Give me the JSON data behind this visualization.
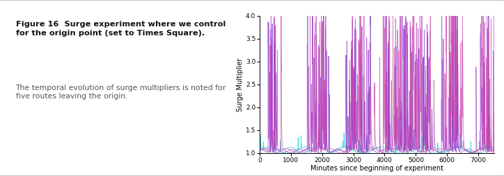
{
  "title_bold": "Figure 16  Surge experiment where we control\nfor the origin point (set to Times Square).",
  "title_normal": " The\ntemporal evolution of surge multipliers is noted for\nfive routes leaving the origin.",
  "xlabel": "Minutes since beginning of experiment",
  "ylabel": "Surge Multiplier",
  "ylim": [
    1.0,
    4.0
  ],
  "xlim": [
    0,
    7500
  ],
  "yticks": [
    1.0,
    1.5,
    2.0,
    2.5,
    3.0,
    3.5,
    4.0
  ],
  "xticks": [
    0,
    1000,
    2000,
    3000,
    4000,
    5000,
    6000,
    7000
  ],
  "colors": [
    "#00CED1",
    "#20B2AA",
    "#CC44AA",
    "#9933CC",
    "#7722BB"
  ],
  "n_points": 7500,
  "seed": 42,
  "background_color": "#ffffff",
  "border_color": "#bbbbbb",
  "text_color_bold": "#111111",
  "text_color_normal": "#555555"
}
